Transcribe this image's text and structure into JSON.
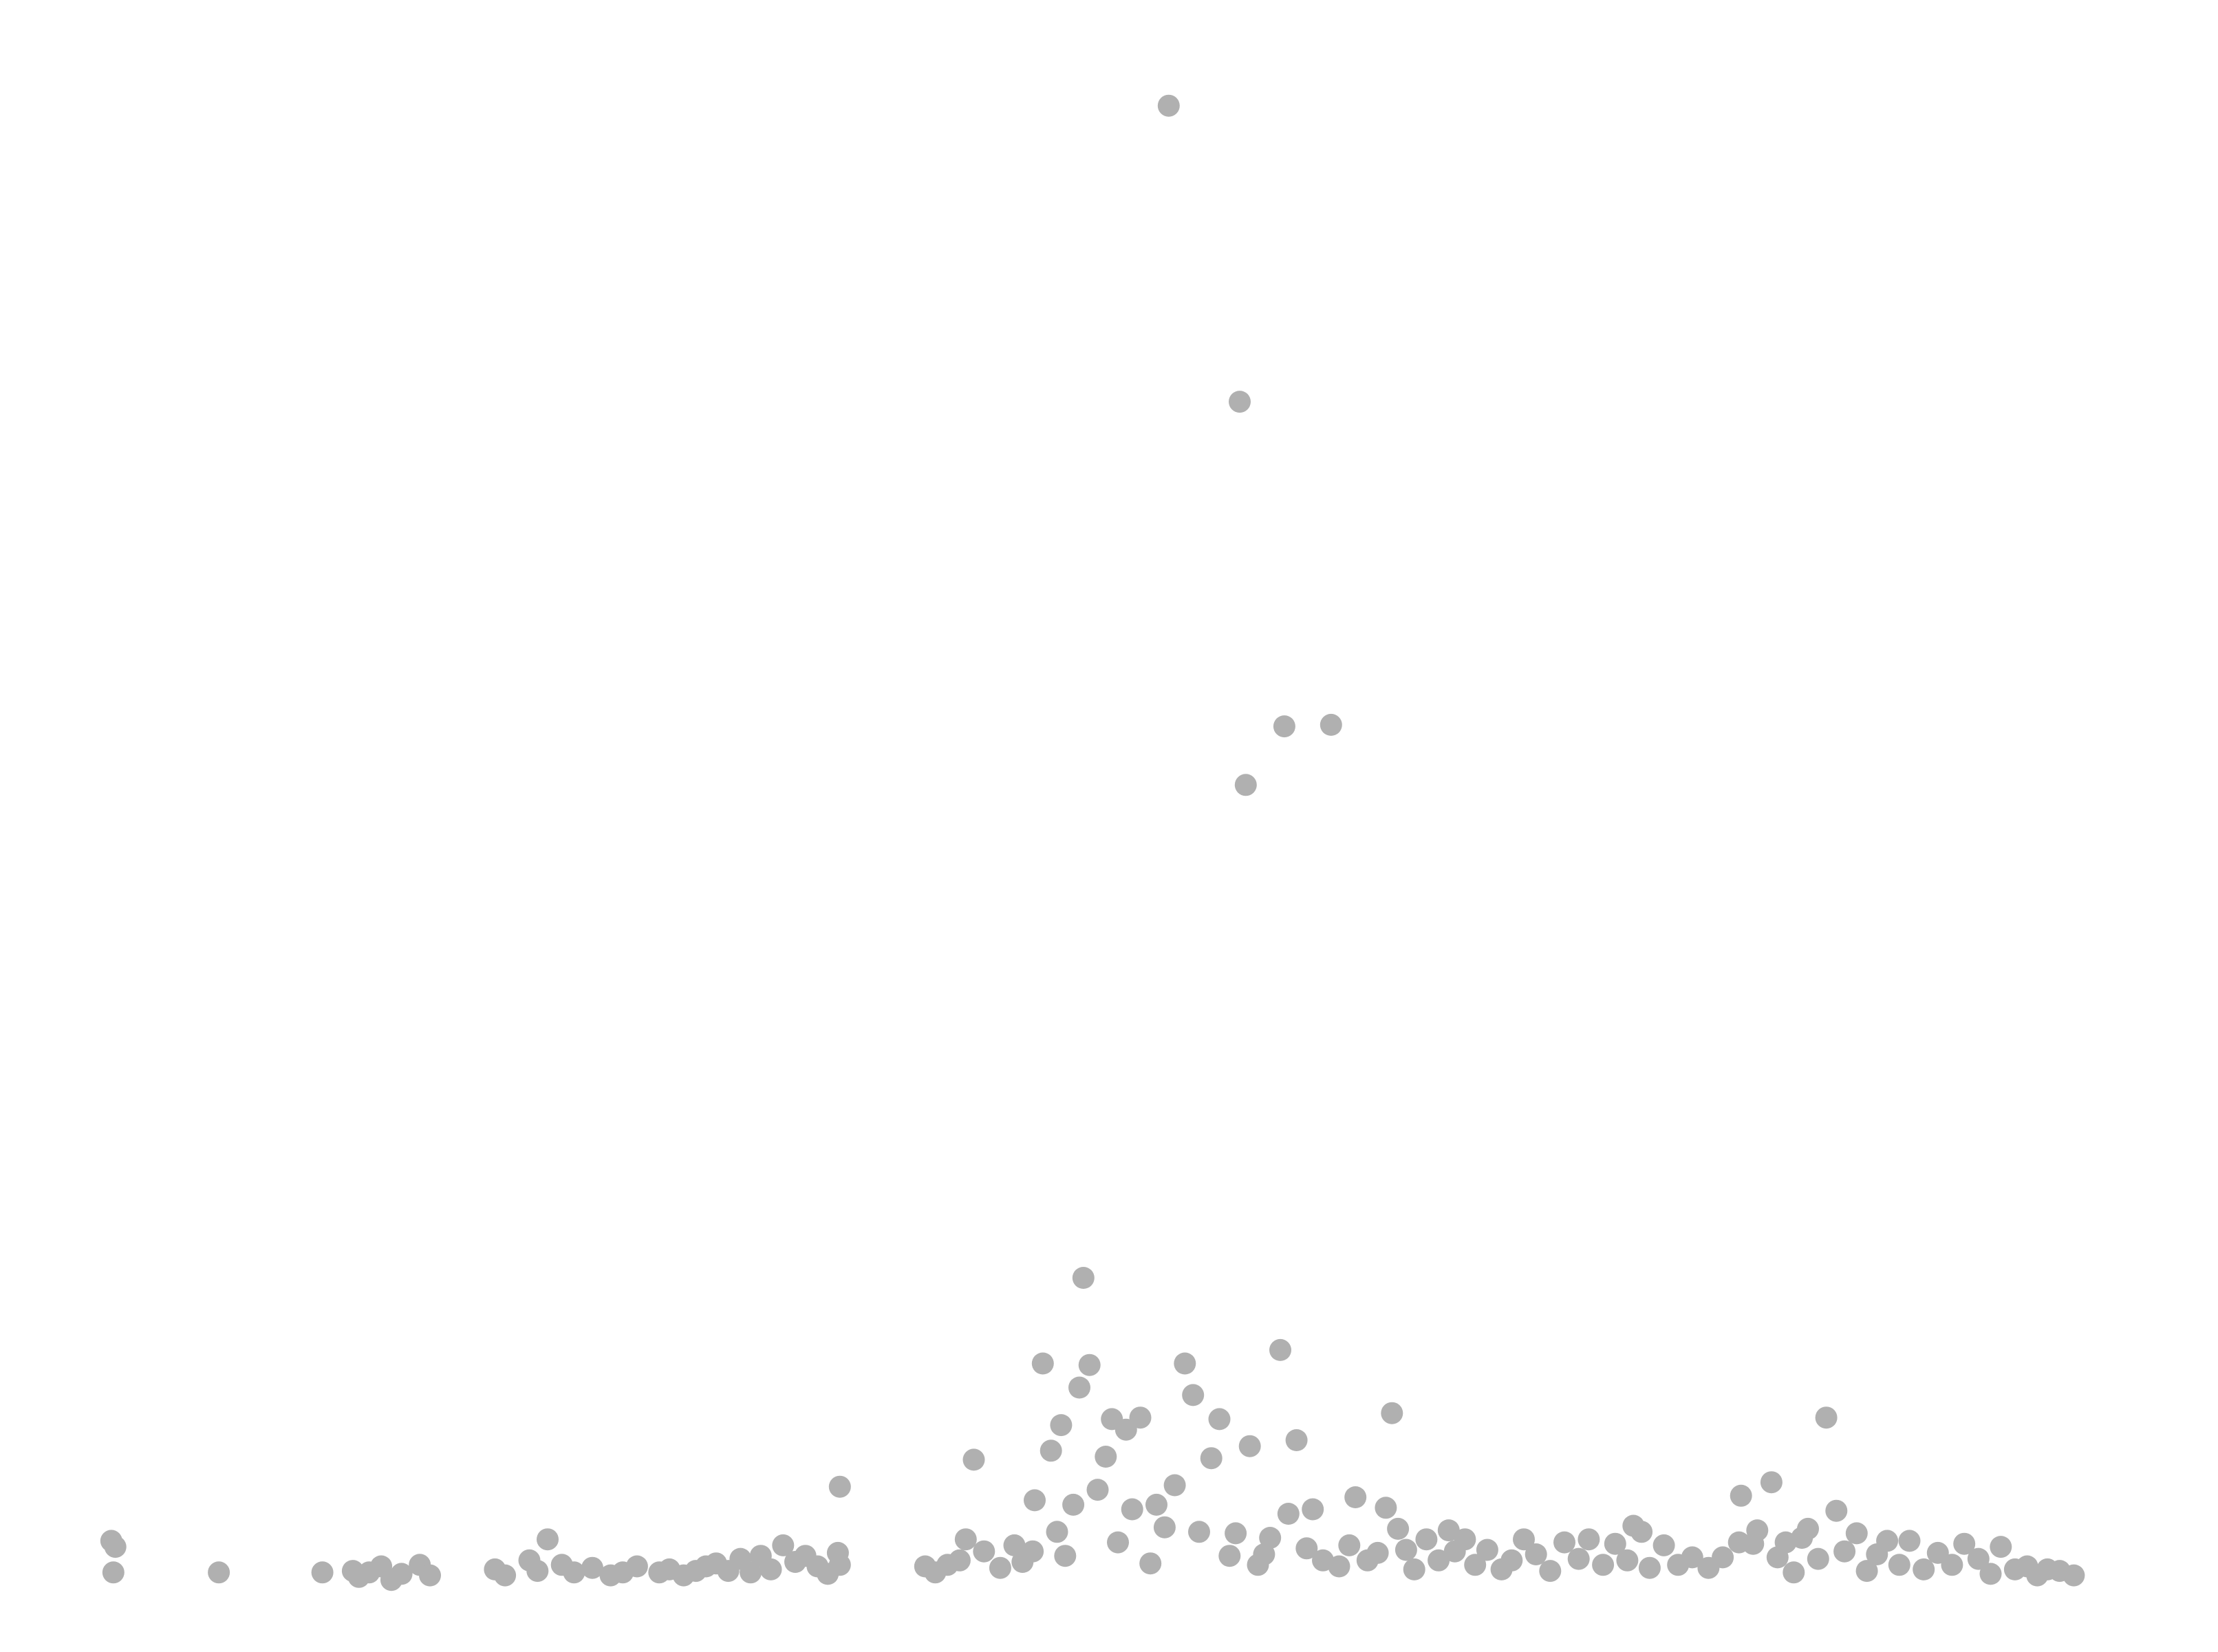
{
  "chart_data": {
    "type": "scatter",
    "title": "",
    "xlabel": "",
    "ylabel": "",
    "xlim": [
      0,
      100
    ],
    "ylim": [
      0,
      100
    ],
    "grid": false,
    "axes_visible": false,
    "marker_color": "#b0b0b0",
    "points": [
      [
        0.4,
        2.5
      ],
      [
        0.6,
        2.1
      ],
      [
        0.5,
        0.4
      ],
      [
        5.7,
        0.4
      ],
      [
        10.8,
        0.4
      ],
      [
        12.3,
        0.5
      ],
      [
        12.6,
        0.1
      ],
      [
        13.1,
        0.4
      ],
      [
        13.7,
        0.8
      ],
      [
        14.2,
        -0.1
      ],
      [
        14.7,
        0.3
      ],
      [
        15.6,
        0.9
      ],
      [
        16.1,
        0.2
      ],
      [
        19.3,
        0.6
      ],
      [
        19.8,
        0.2
      ],
      [
        21.0,
        1.2
      ],
      [
        21.4,
        0.5
      ],
      [
        21.9,
        2.6
      ],
      [
        22.6,
        0.9
      ],
      [
        23.2,
        0.4
      ],
      [
        24.1,
        0.7
      ],
      [
        25.0,
        0.2
      ],
      [
        25.6,
        0.4
      ],
      [
        26.3,
        0.8
      ],
      [
        27.4,
        0.4
      ],
      [
        27.9,
        0.6
      ],
      [
        28.6,
        0.2
      ],
      [
        29.2,
        0.5
      ],
      [
        29.7,
        0.8
      ],
      [
        30.2,
        1.0
      ],
      [
        30.8,
        0.5
      ],
      [
        31.4,
        1.3
      ],
      [
        31.9,
        0.4
      ],
      [
        32.4,
        1.5
      ],
      [
        32.9,
        0.6
      ],
      [
        33.5,
        2.2
      ],
      [
        34.1,
        1.1
      ],
      [
        34.6,
        1.5
      ],
      [
        35.2,
        0.8
      ],
      [
        35.7,
        0.3
      ],
      [
        36.2,
        1.7
      ],
      [
        36.3,
        6.1
      ],
      [
        36.3,
        0.9
      ],
      [
        40.5,
        0.8
      ],
      [
        41.0,
        0.4
      ],
      [
        41.6,
        0.9
      ],
      [
        42.2,
        1.2
      ],
      [
        42.5,
        2.6
      ],
      [
        42.9,
        7.9
      ],
      [
        43.4,
        1.8
      ],
      [
        44.2,
        0.7
      ],
      [
        44.9,
        2.2
      ],
      [
        45.3,
        1.1
      ],
      [
        45.8,
        1.8
      ],
      [
        45.9,
        5.2
      ],
      [
        46.3,
        14.3
      ],
      [
        46.7,
        8.5
      ],
      [
        47.0,
        3.1
      ],
      [
        47.2,
        10.2
      ],
      [
        47.4,
        1.5
      ],
      [
        47.8,
        4.9
      ],
      [
        48.1,
        12.7
      ],
      [
        48.3,
        20.0
      ],
      [
        48.6,
        14.2
      ],
      [
        49.0,
        5.9
      ],
      [
        49.4,
        8.1
      ],
      [
        49.7,
        10.6
      ],
      [
        50.0,
        2.4
      ],
      [
        50.4,
        9.9
      ],
      [
        50.7,
        4.6
      ],
      [
        51.1,
        10.7
      ],
      [
        51.6,
        1.0
      ],
      [
        51.9,
        4.9
      ],
      [
        52.3,
        3.4
      ],
      [
        52.5,
        98.0
      ],
      [
        52.8,
        6.2
      ],
      [
        53.3,
        14.3
      ],
      [
        53.7,
        12.2
      ],
      [
        54.0,
        3.1
      ],
      [
        54.6,
        8.0
      ],
      [
        55.0,
        10.6
      ],
      [
        55.5,
        1.5
      ],
      [
        55.8,
        3.0
      ],
      [
        56.0,
        78.3
      ],
      [
        56.3,
        52.8
      ],
      [
        56.5,
        8.8
      ],
      [
        56.9,
        0.9
      ],
      [
        57.2,
        1.6
      ],
      [
        57.5,
        2.7
      ],
      [
        58.0,
        15.2
      ],
      [
        58.2,
        56.7
      ],
      [
        58.4,
        4.3
      ],
      [
        58.8,
        9.2
      ],
      [
        59.3,
        2.0
      ],
      [
        59.6,
        4.6
      ],
      [
        60.1,
        1.2
      ],
      [
        60.5,
        56.8
      ],
      [
        60.9,
        0.8
      ],
      [
        61.4,
        2.2
      ],
      [
        61.7,
        5.4
      ],
      [
        62.3,
        1.2
      ],
      [
        62.8,
        1.7
      ],
      [
        63.2,
        4.7
      ],
      [
        63.5,
        11.0
      ],
      [
        63.8,
        3.3
      ],
      [
        64.2,
        1.9
      ],
      [
        64.6,
        0.6
      ],
      [
        65.2,
        2.6
      ],
      [
        65.8,
        1.2
      ],
      [
        66.3,
        3.2
      ],
      [
        66.6,
        1.8
      ],
      [
        67.1,
        2.6
      ],
      [
        67.6,
        0.9
      ],
      [
        68.2,
        1.9
      ],
      [
        68.9,
        0.6
      ],
      [
        69.4,
        1.2
      ],
      [
        70.0,
        2.6
      ],
      [
        70.6,
        1.6
      ],
      [
        71.3,
        0.5
      ],
      [
        72.0,
        2.4
      ],
      [
        72.7,
        1.3
      ],
      [
        73.2,
        2.6
      ],
      [
        73.9,
        0.9
      ],
      [
        74.5,
        2.3
      ],
      [
        75.1,
        1.2
      ],
      [
        75.4,
        3.5
      ],
      [
        75.8,
        3.1
      ],
      [
        76.2,
        0.7
      ],
      [
        76.9,
        2.2
      ],
      [
        77.6,
        0.9
      ],
      [
        78.3,
        1.4
      ],
      [
        79.1,
        0.7
      ],
      [
        79.8,
        1.4
      ],
      [
        80.6,
        2.4
      ],
      [
        80.7,
        5.5
      ],
      [
        81.3,
        2.3
      ],
      [
        81.5,
        3.2
      ],
      [
        82.2,
        6.4
      ],
      [
        82.5,
        1.4
      ],
      [
        82.9,
        2.4
      ],
      [
        83.3,
        0.4
      ],
      [
        83.7,
        2.7
      ],
      [
        84.0,
        3.3
      ],
      [
        84.5,
        1.3
      ],
      [
        84.9,
        10.7
      ],
      [
        85.4,
        4.5
      ],
      [
        85.8,
        1.8
      ],
      [
        86.4,
        3.0
      ],
      [
        86.9,
        0.5
      ],
      [
        87.4,
        1.6
      ],
      [
        87.9,
        2.5
      ],
      [
        88.5,
        0.9
      ],
      [
        89.0,
        2.5
      ],
      [
        89.7,
        0.6
      ],
      [
        90.4,
        1.7
      ],
      [
        91.1,
        0.9
      ],
      [
        91.7,
        2.3
      ],
      [
        92.4,
        1.3
      ],
      [
        93.0,
        0.3
      ],
      [
        93.5,
        2.1
      ],
      [
        94.2,
        0.6
      ],
      [
        94.8,
        0.8
      ],
      [
        95.3,
        0.2
      ],
      [
        95.8,
        0.6
      ],
      [
        96.4,
        0.5
      ],
      [
        97.1,
        0.2
      ]
    ]
  }
}
